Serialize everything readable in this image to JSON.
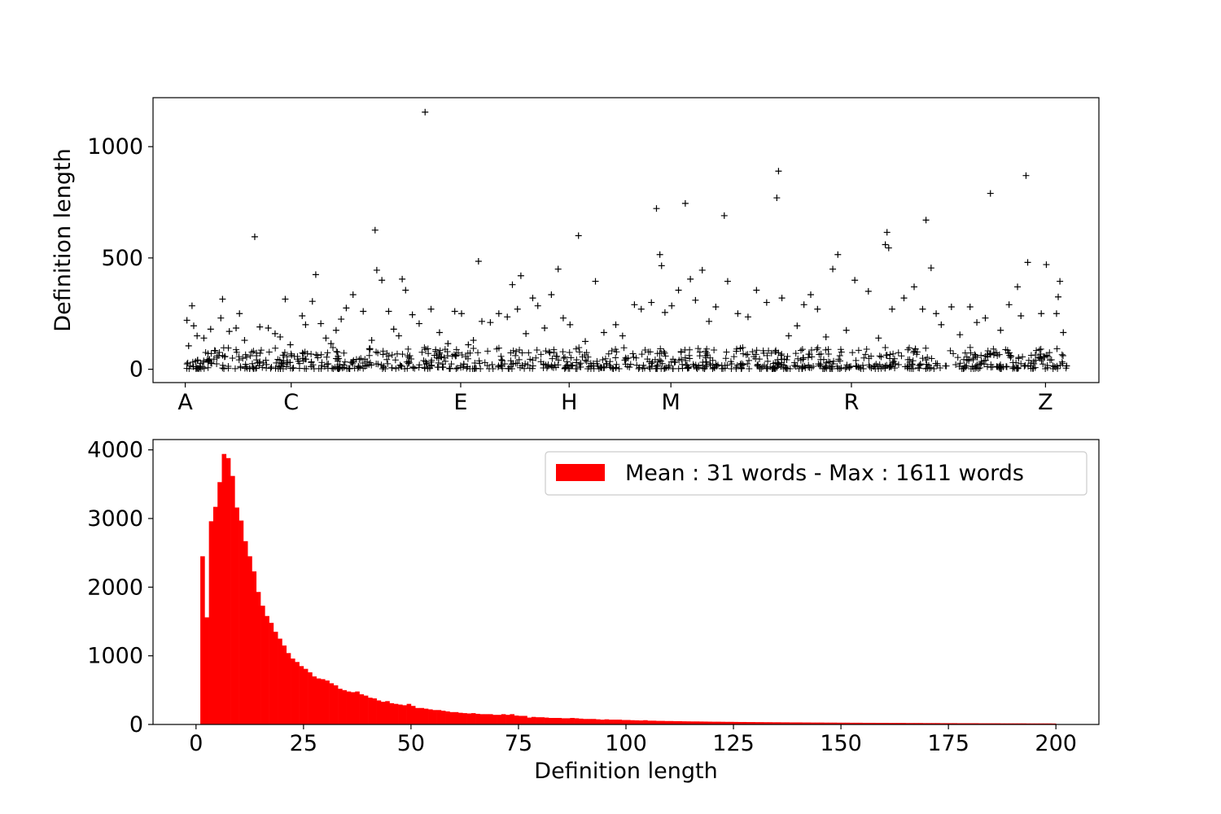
{
  "chart_data": [
    {
      "type": "scatter",
      "title": "",
      "xlabel": "",
      "ylabel": "Definition length",
      "x_tick_labels": [
        "A",
        "C",
        "E",
        "H",
        "M",
        "R",
        "Z"
      ],
      "yticks": [
        0,
        500,
        1000
      ],
      "ylim": [
        -60,
        1220
      ],
      "marker": "+",
      "marker_color": "#000000",
      "grid": false,
      "series": [
        {
          "values": [
            [
              2,
              220
            ],
            [
              4,
              105
            ],
            [
              8,
              285
            ],
            [
              10,
              195
            ],
            [
              14,
              150
            ],
            [
              22,
              140
            ],
            [
              30,
              180
            ],
            [
              42,
              230
            ],
            [
              44,
              315
            ],
            [
              52,
              170
            ],
            [
              60,
              185
            ],
            [
              64,
              250
            ],
            [
              70,
              130
            ],
            [
              82,
              595
            ],
            [
              88,
              190
            ],
            [
              98,
              185
            ],
            [
              106,
              160
            ],
            [
              112,
              145
            ],
            [
              118,
              315
            ],
            [
              124,
              110
            ],
            [
              138,
              240
            ],
            [
              142,
              200
            ],
            [
              150,
              305
            ],
            [
              154,
              425
            ],
            [
              160,
              205
            ],
            [
              166,
              140
            ],
            [
              172,
              115
            ],
            [
              178,
              175
            ],
            [
              184,
              225
            ],
            [
              190,
              275
            ],
            [
              198,
              335
            ],
            [
              210,
              260
            ],
            [
              220,
              130
            ],
            [
              224,
              625
            ],
            [
              226,
              445
            ],
            [
              232,
              400
            ],
            [
              240,
              260
            ],
            [
              246,
              180
            ],
            [
              252,
              150
            ],
            [
              256,
              405
            ],
            [
              260,
              355
            ],
            [
              268,
              245
            ],
            [
              276,
              205
            ],
            [
              283,
              1155
            ],
            [
              290,
              270
            ],
            [
              300,
              165
            ],
            [
              310,
              115
            ],
            [
              318,
              260
            ],
            [
              326,
              250
            ],
            [
              334,
              110
            ],
            [
              340,
              130
            ],
            [
              346,
              485
            ],
            [
              350,
              215
            ],
            [
              360,
              210
            ],
            [
              370,
              250
            ],
            [
              380,
              235
            ],
            [
              386,
              380
            ],
            [
              392,
              270
            ],
            [
              396,
              420
            ],
            [
              402,
              160
            ],
            [
              410,
              320
            ],
            [
              416,
              285
            ],
            [
              424,
              185
            ],
            [
              432,
              335
            ],
            [
              440,
              450
            ],
            [
              446,
              230
            ],
            [
              454,
              200
            ],
            [
              464,
              600
            ],
            [
              472,
              125
            ],
            [
              484,
              395
            ],
            [
              494,
              165
            ],
            [
              508,
              200
            ],
            [
              516,
              150
            ],
            [
              530,
              290
            ],
            [
              538,
              270
            ],
            [
              550,
              300
            ],
            [
              556,
              722
            ],
            [
              560,
              515
            ],
            [
              562,
              465
            ],
            [
              566,
              255
            ],
            [
              574,
              285
            ],
            [
              582,
              355
            ],
            [
              590,
              745
            ],
            [
              596,
              405
            ],
            [
              602,
              310
            ],
            [
              610,
              445
            ],
            [
              618,
              215
            ],
            [
              626,
              280
            ],
            [
              636,
              690
            ],
            [
              640,
              395
            ],
            [
              652,
              250
            ],
            [
              664,
              235
            ],
            [
              674,
              355
            ],
            [
              686,
              300
            ],
            [
              698,
              770
            ],
            [
              700,
              890
            ],
            [
              704,
              320
            ],
            [
              712,
              150
            ],
            [
              722,
              195
            ],
            [
              730,
              290
            ],
            [
              738,
              335
            ],
            [
              746,
              270
            ],
            [
              756,
              145
            ],
            [
              764,
              450
            ],
            [
              770,
              515
            ],
            [
              780,
              175
            ],
            [
              790,
              400
            ],
            [
              806,
              350
            ],
            [
              818,
              140
            ],
            [
              826,
              560
            ],
            [
              828,
              615
            ],
            [
              830,
              545
            ],
            [
              834,
              270
            ],
            [
              848,
              320
            ],
            [
              860,
              370
            ],
            [
              870,
              270
            ],
            [
              874,
              670
            ],
            [
              880,
              455
            ],
            [
              886,
              250
            ],
            [
              892,
              200
            ],
            [
              904,
              280
            ],
            [
              914,
              155
            ],
            [
              926,
              280
            ],
            [
              934,
              210
            ],
            [
              944,
              230
            ],
            [
              950,
              790
            ],
            [
              962,
              175
            ],
            [
              972,
              290
            ],
            [
              982,
              370
            ],
            [
              986,
              240
            ],
            [
              992,
              870
            ],
            [
              994,
              480
            ],
            [
              1010,
              250
            ],
            [
              1016,
              470
            ],
            [
              1028,
              250
            ],
            [
              1030,
              325
            ],
            [
              1032,
              395
            ],
            [
              1036,
              165
            ],
            [
              1040,
              15
            ]
          ]
        }
      ],
      "x_range": [
        -38,
        1078
      ],
      "dense_band_max": 60
    },
    {
      "type": "bar",
      "title": "",
      "xlabel": "Definition length",
      "ylabel": "",
      "xlim": [
        -10,
        210
      ],
      "ylim": [
        0,
        4150
      ],
      "xticks": [
        0,
        25,
        50,
        75,
        100,
        125,
        150,
        175,
        200
      ],
      "yticks": [
        0,
        1000,
        2000,
        3000,
        4000
      ],
      "bar_color": "#ff0000",
      "grid": false,
      "legend": "top-right",
      "series": [
        {
          "name": "Mean : 31 words - Max : 1611 words",
          "bin_start": 1,
          "bin_width": 1,
          "values": [
            2450,
            1560,
            2960,
            3170,
            3530,
            3940,
            3880,
            3620,
            3160,
            2970,
            2670,
            2450,
            2230,
            1930,
            1730,
            1580,
            1480,
            1350,
            1250,
            1150,
            1040,
            960,
            910,
            850,
            810,
            760,
            700,
            670,
            660,
            640,
            600,
            570,
            520,
            500,
            480,
            470,
            480,
            440,
            420,
            390,
            380,
            350,
            330,
            340,
            310,
            300,
            290,
            280,
            300,
            270,
            240,
            240,
            230,
            220,
            210,
            210,
            200,
            190,
            180,
            180,
            170,
            165,
            160,
            165,
            155,
            150,
            150,
            150,
            140,
            140,
            150,
            140,
            150,
            130,
            125,
            125,
            100,
            110,
            105,
            105,
            100,
            95,
            95,
            95,
            90,
            90,
            95,
            90,
            85,
            80,
            80,
            80,
            75,
            70,
            75,
            70,
            70,
            70,
            65,
            65,
            62,
            60,
            58,
            62,
            55,
            55,
            52,
            52,
            50,
            50,
            48,
            48,
            46,
            45,
            44,
            44,
            43,
            42,
            41,
            40,
            40,
            39,
            38,
            38,
            37,
            36,
            36,
            35,
            35,
            34,
            34,
            33,
            33,
            32,
            32,
            31,
            31,
            30,
            30,
            30,
            29,
            29,
            28,
            28,
            28,
            27,
            27,
            27,
            26,
            26,
            26,
            25,
            25,
            25,
            24,
            24,
            24,
            23,
            23,
            23,
            22,
            22,
            22,
            22,
            21,
            21,
            21,
            21,
            20,
            20,
            20,
            20,
            19,
            19,
            19,
            19,
            18,
            18,
            18,
            18,
            18,
            17,
            17,
            17,
            17,
            17,
            16,
            16,
            16,
            16,
            16,
            16,
            15,
            15,
            15,
            15,
            15,
            15,
            14
          ]
        }
      ]
    }
  ]
}
